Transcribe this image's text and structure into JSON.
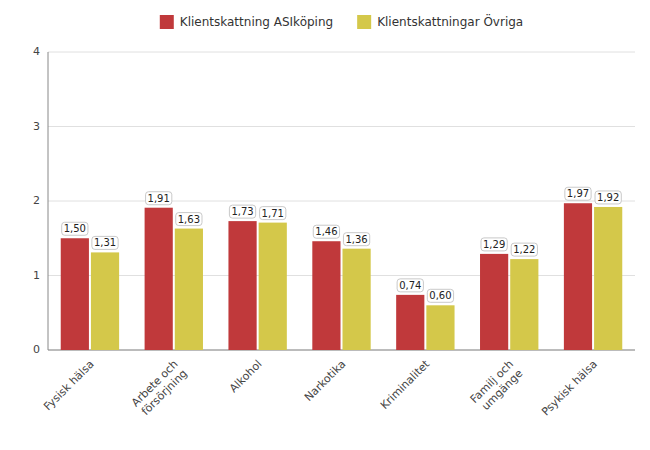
{
  "chart_data": {
    "type": "bar",
    "categories": [
      "Fysisk hälsa",
      "Arbete och\nförsörjning",
      "Alkohol",
      "Narkotika",
      "Kriminalitet",
      "Familj och\numgänge",
      "Psykisk hälsa"
    ],
    "series": [
      {
        "name": "Klientskattning ASIköping",
        "color": "#c0393b",
        "values": [
          1.5,
          1.91,
          1.73,
          1.46,
          0.74,
          1.29,
          1.97
        ],
        "value_labels": [
          "1,50",
          "1,91",
          "1,73",
          "1,46",
          "0,74",
          "1,29",
          "1,97"
        ]
      },
      {
        "name": "Klientskattningar Övriga",
        "color": "#d4c84a",
        "values": [
          1.31,
          1.63,
          1.71,
          1.36,
          0.6,
          1.22,
          1.92
        ],
        "value_labels": [
          "1,31",
          "1,63",
          "1,71",
          "1,36",
          "0,60",
          "1,22",
          "1,92"
        ]
      }
    ],
    "ylim": [
      0,
      4
    ],
    "yticks": [
      0,
      1,
      2,
      3,
      4
    ],
    "grid": true,
    "legend": "top",
    "data_labels": true
  }
}
